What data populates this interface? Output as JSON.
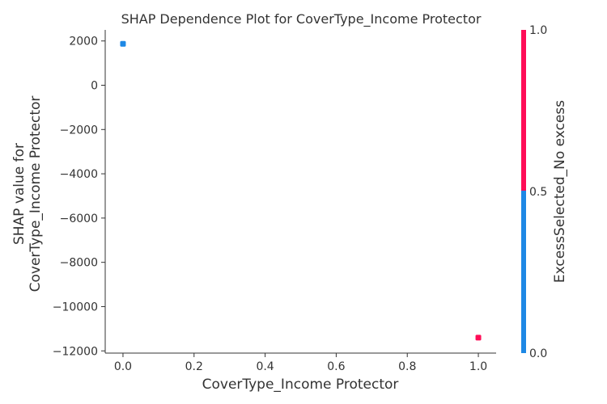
{
  "chart_data": {
    "type": "scatter",
    "title": "SHAP Dependence Plot for CoverType_Income Protector",
    "xlabel": "CoverType_Income Protector",
    "ylabel_lines": [
      "SHAP value for",
      "CoverType_Income Protector"
    ],
    "xlim": [
      -0.05,
      1.05
    ],
    "ylim": [
      -12100,
      2500
    ],
    "x_ticks": [
      0.0,
      0.2,
      0.4,
      0.6,
      0.8,
      1.0
    ],
    "x_tick_labels": [
      "0.0",
      "0.2",
      "0.4",
      "0.6",
      "0.8",
      "1.0"
    ],
    "y_ticks": [
      2000,
      0,
      -2000,
      -4000,
      -6000,
      -8000,
      -10000,
      -12000
    ],
    "y_tick_labels": [
      "2000",
      "0",
      "−2000",
      "−4000",
      "−6000",
      "−8000",
      "−10000",
      "−12000"
    ],
    "points": [
      {
        "x": 0.0,
        "y": 1870,
        "color_value": 0.0
      },
      {
        "x": 1.0,
        "y": -11400,
        "color_value": 1.0
      }
    ],
    "colorbar": {
      "label": "ExcessSelected_No excess",
      "range": [
        0.0,
        1.0
      ],
      "ticks": [
        1.0,
        0.5,
        0.0
      ],
      "tick_labels": [
        "1.0",
        "0.5",
        "0.0"
      ],
      "low_color": "#1e88e5",
      "high_color": "#ff0d57"
    },
    "grid": false
  }
}
